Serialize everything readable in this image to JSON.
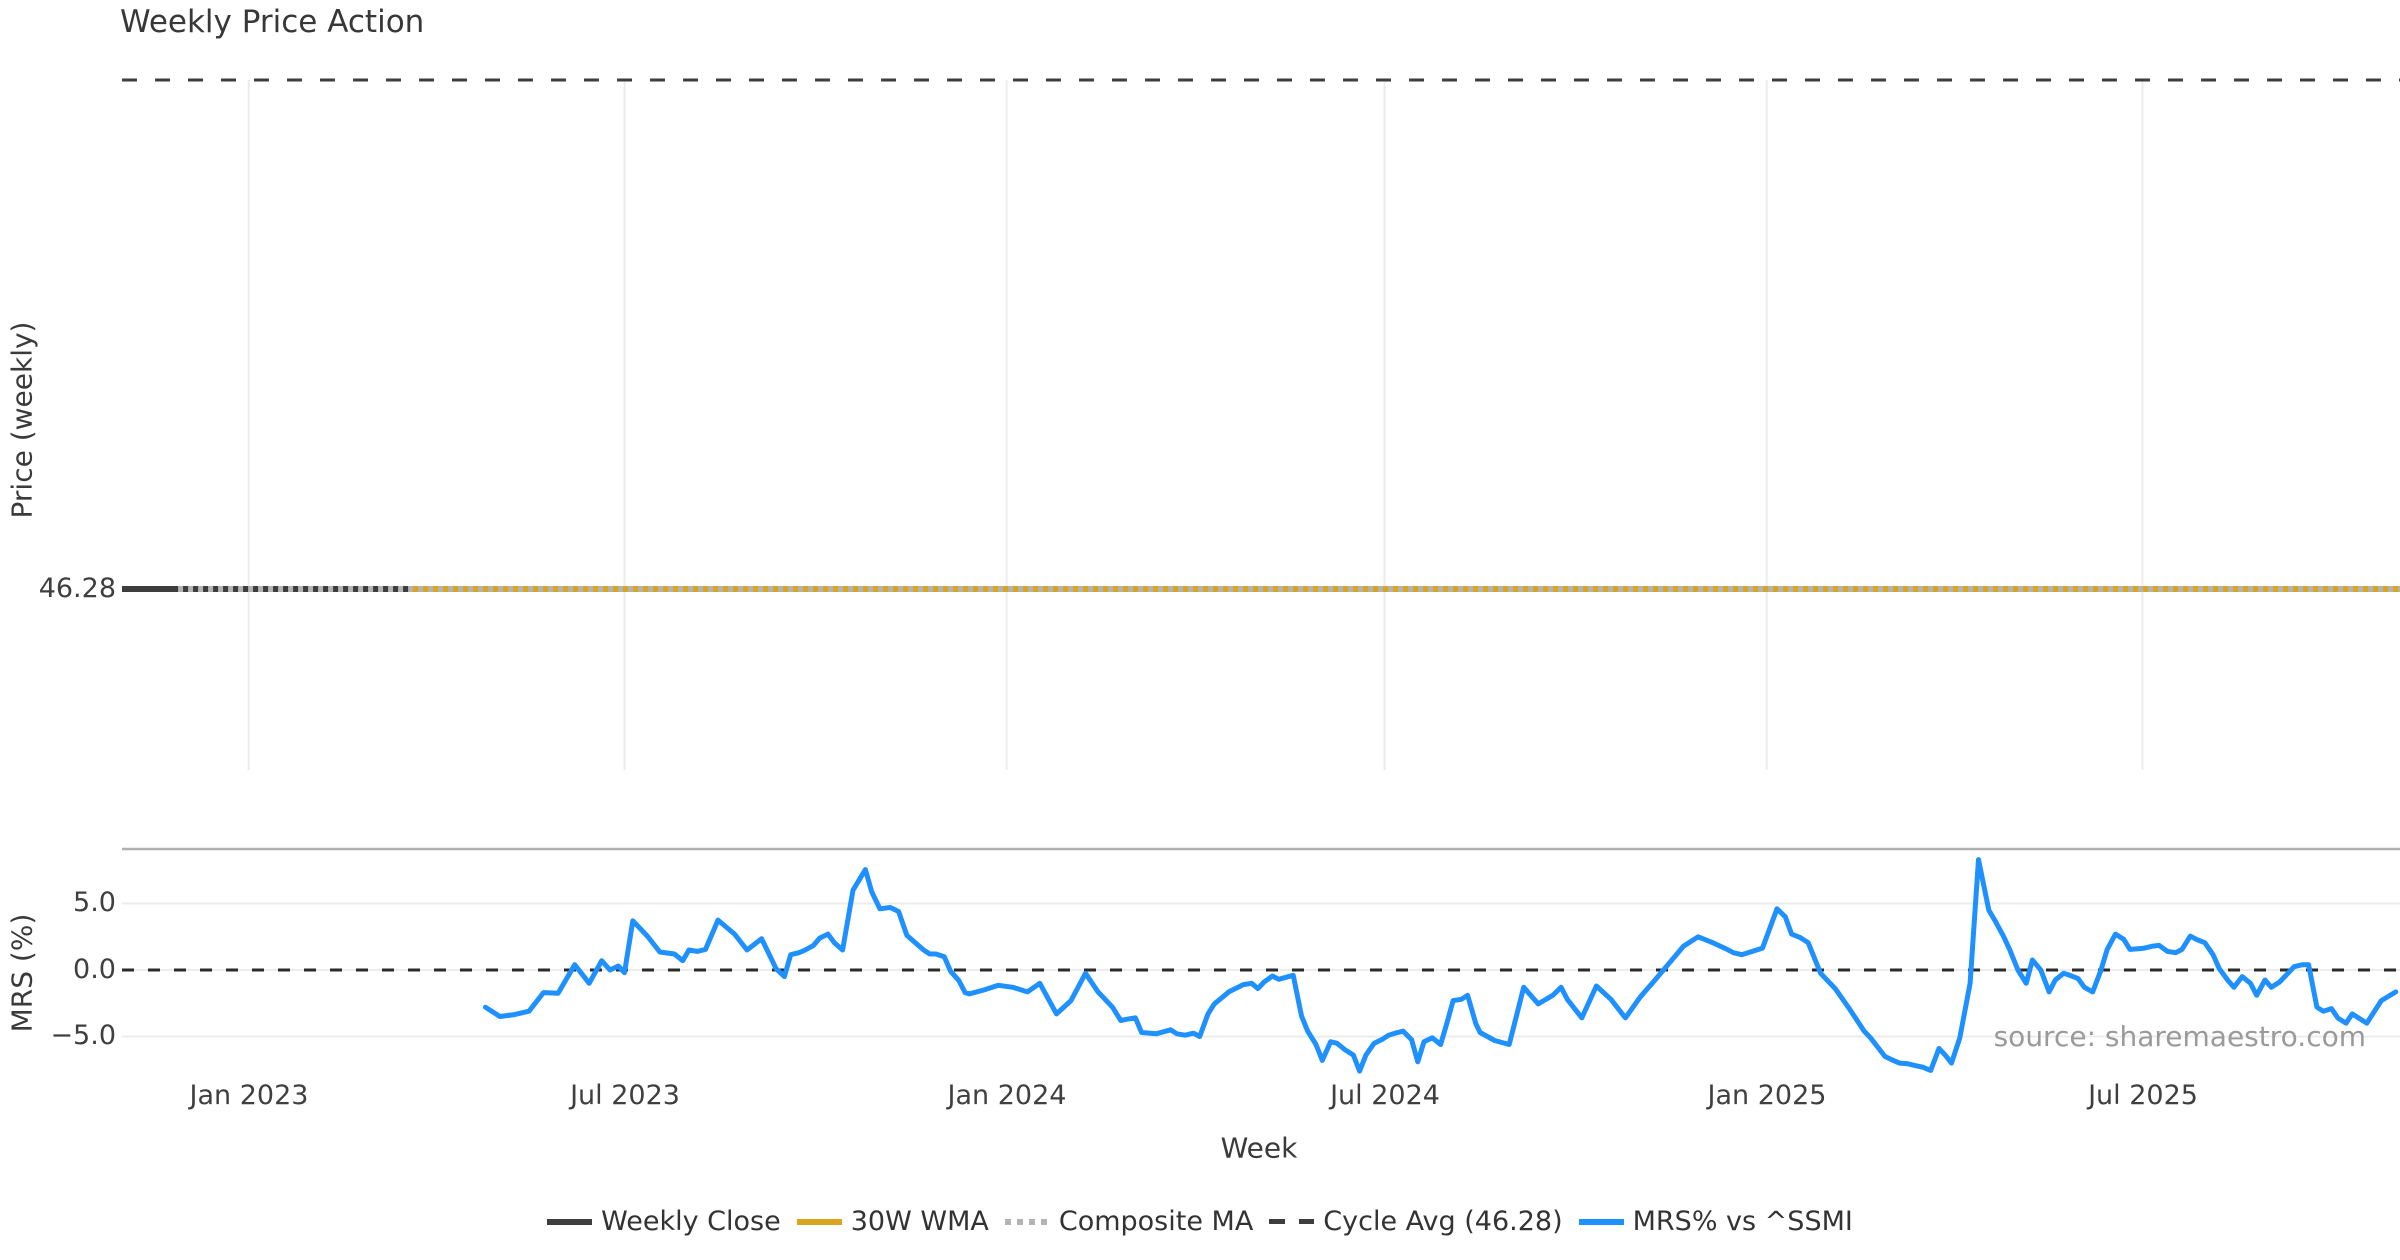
{
  "title": "Weekly Price Action",
  "source_note": "source: sharemaestro.com",
  "colors": {
    "weekly_close": "#3d3d3d",
    "wma_30w": "#d9a51e",
    "composite_ma": "#b3b3b3",
    "cycle_avg": "#3d3d3d",
    "mrs_line": "#1e90ff",
    "gridline": "#ececec",
    "panel_spine": "#b0b0b0",
    "zero_dash": "#2b2b2b"
  },
  "legend": {
    "items": [
      {
        "label": "Weekly Close",
        "style": "solid",
        "color": "#3d3d3d"
      },
      {
        "label": "30W WMA",
        "style": "solid",
        "color": "#d9a51e"
      },
      {
        "label": "Composite MA",
        "style": "dotted",
        "color": "#b3b3b3"
      },
      {
        "label": "Cycle Avg (46.28)",
        "style": "dashed",
        "color": "#3d3d3d"
      },
      {
        "label": "MRS% vs ^SSMI",
        "style": "solid",
        "color": "#1e90ff"
      }
    ]
  },
  "chart_data": {
    "type": "line",
    "title": "Weekly Price Action",
    "grid": "vertical gridlines in price panel at month ticks; light horizontal gridlines at MRS yticks",
    "legend_position": "bottom center",
    "x_axis": {
      "label": "Week",
      "days_note": "day 0 = Jan 2023 tick; x domain in days spans plot width",
      "domain_days": [
        -61,
        1036
      ],
      "ticks": [
        {
          "label": "Jan 2023",
          "day": 0
        },
        {
          "label": "Jul 2023",
          "day": 181
        },
        {
          "label": "Jan 2024",
          "day": 365
        },
        {
          "label": "Jul 2024",
          "day": 547
        },
        {
          "label": "Jan 2025",
          "day": 731
        },
        {
          "label": "Jul 2025",
          "day": 912
        }
      ]
    },
    "panels": [
      {
        "id": "price",
        "ylabel": "Price (weekly)",
        "yticks": [
          {
            "label": "46.28",
            "value": 46.28
          }
        ],
        "series": [
          {
            "name": "Weekly Close",
            "style": "solid",
            "color": "#3d3d3d",
            "constant_value": 46.28,
            "day_range": [
              -61,
              77
            ]
          },
          {
            "name": "30W WMA",
            "style": "solid",
            "color": "#d9a51e",
            "constant_value": 46.28,
            "day_range": [
              77,
              1036
            ]
          },
          {
            "name": "Composite MA",
            "style": "dotted",
            "color": "#b3b3b3",
            "constant_value": 46.28,
            "day_range": [
              -34,
              1036
            ]
          },
          {
            "name": "Cycle Avg",
            "style": "dashed",
            "color": "#3d3d3d",
            "constant_value": 46.28,
            "day_range": [
              -61,
              1036
            ],
            "note": "dashed line rendered along top of the price panel"
          }
        ]
      },
      {
        "id": "mrs",
        "ylabel": "MRS (%)",
        "ylim": [
          -8.1,
          9.1
        ],
        "yticks": [
          {
            "label": "5.0",
            "value": 5.0
          },
          {
            "label": "0.0",
            "value": 0.0
          },
          {
            "label": "−5.0",
            "value": -5.0
          }
        ],
        "zero_line": "black dashed at 0.0",
        "series": [
          {
            "name": "MRS% vs ^SSMI",
            "style": "solid",
            "color": "#1e90ff",
            "points_format": "[day, percent]",
            "points": [
              [
                114,
                -2.8
              ],
              [
                121,
                -3.5
              ],
              [
                128,
                -3.35
              ],
              [
                135,
                -3.1
              ],
              [
                142,
                -1.7
              ],
              [
                149,
                -1.75
              ],
              [
                157,
                0.4
              ],
              [
                164,
                -1.0
              ],
              [
                170,
                0.7
              ],
              [
                174,
                0.0
              ],
              [
                178,
                0.3
              ],
              [
                181,
                -0.2
              ],
              [
                185,
                3.7
              ],
              [
                192,
                2.55
              ],
              [
                198,
                1.35
              ],
              [
                205,
                1.2
              ],
              [
                209,
                0.7
              ],
              [
                212,
                1.5
              ],
              [
                216,
                1.4
              ],
              [
                220,
                1.55
              ],
              [
                226,
                3.75
              ],
              [
                234,
                2.7
              ],
              [
                240,
                1.5
              ],
              [
                247,
                2.35
              ],
              [
                254,
                0.1
              ],
              [
                258,
                -0.5
              ],
              [
                261,
                1.15
              ],
              [
                265,
                1.3
              ],
              [
                268,
                1.5
              ],
              [
                272,
                1.85
              ],
              [
                275,
                2.4
              ],
              [
                279,
                2.7
              ],
              [
                282,
                2.05
              ],
              [
                286,
                1.5
              ],
              [
                291,
                6.0
              ],
              [
                297,
                7.55
              ],
              [
                300,
                5.9
              ],
              [
                304,
                4.6
              ],
              [
                309,
                4.7
              ],
              [
                313,
                4.4
              ],
              [
                317,
                2.6
              ],
              [
                325,
                1.5
              ],
              [
                328,
                1.2
              ],
              [
                331,
                1.2
              ],
              [
                335,
                1.0
              ],
              [
                338,
                -0.1
              ],
              [
                342,
                -0.8
              ],
              [
                345,
                -1.7
              ],
              [
                347,
                -1.8
              ],
              [
                354,
                -1.5
              ],
              [
                361,
                -1.15
              ],
              [
                368,
                -1.3
              ],
              [
                375,
                -1.65
              ],
              [
                381,
                -1.0
              ],
              [
                389,
                -3.3
              ],
              [
                396,
                -2.3
              ],
              [
                403,
                -0.25
              ],
              [
                409,
                -1.65
              ],
              [
                416,
                -2.8
              ],
              [
                420,
                -3.8
              ],
              [
                423,
                -3.7
              ],
              [
                427,
                -3.6
              ],
              [
                430,
                -4.7
              ],
              [
                437,
                -4.8
              ],
              [
                444,
                -4.5
              ],
              [
                447,
                -4.8
              ],
              [
                451,
                -4.9
              ],
              [
                455,
                -4.75
              ],
              [
                458,
                -5.0
              ],
              [
                462,
                -3.3
              ],
              [
                465,
                -2.55
              ],
              [
                472,
                -1.65
              ],
              [
                479,
                -1.1
              ],
              [
                483,
                -1.0
              ],
              [
                486,
                -1.4
              ],
              [
                489,
                -0.9
              ],
              [
                493,
                -0.45
              ],
              [
                496,
                -0.7
              ],
              [
                503,
                -0.4
              ],
              [
                507,
                -3.45
              ],
              [
                510,
                -4.6
              ],
              [
                514,
                -5.6
              ],
              [
                517,
                -6.8
              ],
              [
                521,
                -5.4
              ],
              [
                524,
                -5.5
              ],
              [
                528,
                -6.0
              ],
              [
                532,
                -6.4
              ],
              [
                535,
                -7.6
              ],
              [
                538,
                -6.4
              ],
              [
                542,
                -5.5
              ],
              [
                546,
                -5.2
              ],
              [
                549,
                -4.9
              ],
              [
                552,
                -4.75
              ],
              [
                556,
                -4.6
              ],
              [
                560,
                -5.25
              ],
              [
                563,
                -6.9
              ],
              [
                566,
                -5.4
              ],
              [
                570,
                -5.1
              ],
              [
                574,
                -5.6
              ],
              [
                577,
                -4.0
              ],
              [
                580,
                -2.3
              ],
              [
                584,
                -2.2
              ],
              [
                587,
                -1.9
              ],
              [
                591,
                -4.05
              ],
              [
                593,
                -4.7
              ],
              [
                600,
                -5.3
              ],
              [
                607,
                -5.6
              ],
              [
                614,
                -1.3
              ],
              [
                621,
                -2.55
              ],
              [
                628,
                -1.9
              ],
              [
                632,
                -1.3
              ],
              [
                635,
                -2.2
              ],
              [
                642,
                -3.6
              ],
              [
                649,
                -1.2
              ],
              [
                656,
                -2.2
              ],
              [
                663,
                -3.6
              ],
              [
                670,
                -2.05
              ],
              [
                677,
                -0.8
              ],
              [
                684,
                0.5
              ],
              [
                691,
                1.8
              ],
              [
                698,
                2.5
              ],
              [
                705,
                2.05
              ],
              [
                712,
                1.55
              ],
              [
                715,
                1.3
              ],
              [
                719,
                1.15
              ],
              [
                722,
                1.3
              ],
              [
                729,
                1.65
              ],
              [
                736,
                4.6
              ],
              [
                740,
                4.0
              ],
              [
                743,
                2.7
              ],
              [
                747,
                2.45
              ],
              [
                751,
                2.05
              ],
              [
                757,
                -0.25
              ],
              [
                764,
                -1.4
              ],
              [
                771,
                -2.95
              ],
              [
                778,
                -4.6
              ],
              [
                781,
                -5.1
              ],
              [
                785,
                -5.9
              ],
              [
                788,
                -6.5
              ],
              [
                792,
                -6.8
              ],
              [
                795,
                -7.0
              ],
              [
                799,
                -7.05
              ],
              [
                803,
                -7.2
              ],
              [
                806,
                -7.3
              ],
              [
                810,
                -7.55
              ],
              [
                814,
                -5.9
              ],
              [
                817,
                -6.4
              ],
              [
                820,
                -7.0
              ],
              [
                824,
                -5.1
              ],
              [
                829,
                -1.0
              ],
              [
                833,
                8.3
              ],
              [
                838,
                4.5
              ],
              [
                841,
                3.7
              ],
              [
                845,
                2.55
              ],
              [
                848,
                1.55
              ],
              [
                852,
                0.0
              ],
              [
                856,
                -1.0
              ],
              [
                859,
                0.75
              ],
              [
                863,
                0.0
              ],
              [
                867,
                -1.65
              ],
              [
                870,
                -0.75
              ],
              [
                874,
                -0.25
              ],
              [
                877,
                -0.4
              ],
              [
                881,
                -0.65
              ],
              [
                884,
                -1.3
              ],
              [
                888,
                -1.65
              ],
              [
                892,
                0.0
              ],
              [
                895,
                1.55
              ],
              [
                899,
                2.7
              ],
              [
                903,
                2.3
              ],
              [
                906,
                1.55
              ],
              [
                910,
                1.6
              ],
              [
                913,
                1.65
              ],
              [
                917,
                1.8
              ],
              [
                920,
                1.85
              ],
              [
                924,
                1.4
              ],
              [
                928,
                1.3
              ],
              [
                931,
                1.55
              ],
              [
                935,
                2.55
              ],
              [
                938,
                2.3
              ],
              [
                942,
                2.05
              ],
              [
                946,
                1.15
              ],
              [
                949,
                0.1
              ],
              [
                953,
                -0.75
              ],
              [
                956,
                -1.3
              ],
              [
                960,
                -0.5
              ],
              [
                964,
                -1.0
              ],
              [
                967,
                -1.9
              ],
              [
                971,
                -0.75
              ],
              [
                974,
                -1.3
              ],
              [
                978,
                -0.9
              ],
              [
                982,
                -0.25
              ],
              [
                985,
                0.25
              ],
              [
                989,
                0.4
              ],
              [
                992,
                0.4
              ],
              [
                996,
                -2.8
              ],
              [
                999,
                -3.1
              ],
              [
                1003,
                -2.9
              ],
              [
                1006,
                -3.6
              ],
              [
                1010,
                -4.0
              ],
              [
                1013,
                -3.3
              ],
              [
                1017,
                -3.7
              ],
              [
                1020,
                -4.0
              ],
              [
                1027,
                -2.3
              ],
              [
                1034,
                -1.65
              ]
            ]
          }
        ]
      }
    ]
  }
}
